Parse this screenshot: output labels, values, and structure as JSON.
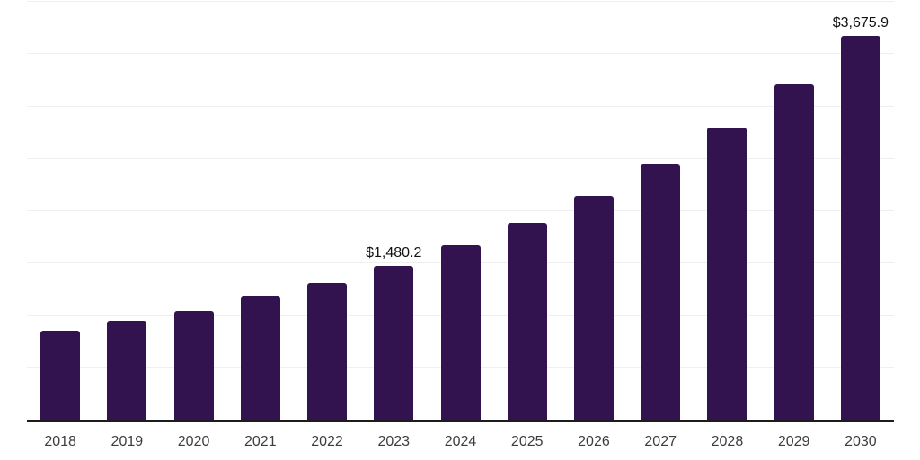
{
  "chart_data": {
    "type": "bar",
    "title": "",
    "xlabel": "",
    "ylabel": "",
    "categories": [
      "2018",
      "2019",
      "2020",
      "2021",
      "2022",
      "2023",
      "2024",
      "2025",
      "2026",
      "2027",
      "2028",
      "2029",
      "2030"
    ],
    "values": [
      855,
      950,
      1050,
      1185,
      1315,
      1480.2,
      1670,
      1890,
      2150,
      2450,
      2800,
      3210,
      3675.9
    ],
    "ylim": [
      0,
      4000
    ],
    "gridline_step": 500,
    "grid": true,
    "legend": "none",
    "bar_color": "#331250",
    "axis_color": "#1c1c1c",
    "gridline_color": "#efefef",
    "tick_label_color": "#3d3d3d",
    "data_label_color": "#111111",
    "data_labels": [
      {
        "category": "2023",
        "label": "$1,480.2"
      },
      {
        "category": "2030",
        "label": "$3,675.9"
      }
    ]
  }
}
